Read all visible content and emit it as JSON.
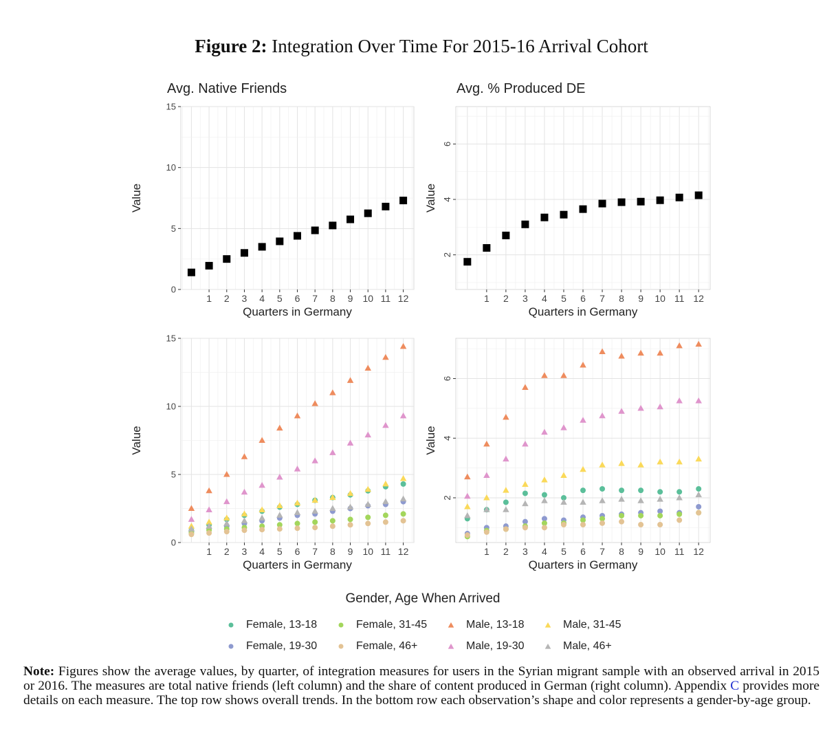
{
  "figure": {
    "label": "Figure 2:",
    "title": "Integration Over Time For 2015-16 Arrival Cohort"
  },
  "panel_titles": {
    "left": "Avg. Native Friends",
    "right": "Avg. % Produced DE"
  },
  "legend": {
    "title": "Gender, Age When Arrived",
    "items": [
      {
        "label": "Female, 13-18",
        "shape": "circle",
        "color": "#5bbf9a"
      },
      {
        "label": "Female, 19-30",
        "shape": "circle",
        "color": "#8e9acf"
      },
      {
        "label": "Female, 31-45",
        "shape": "circle",
        "color": "#a3d65c"
      },
      {
        "label": "Female, 46+",
        "shape": "circle",
        "color": "#e3c394"
      },
      {
        "label": "Male, 13-18",
        "shape": "triangle",
        "color": "#ee8c5e"
      },
      {
        "label": "Male, 19-30",
        "shape": "triangle",
        "color": "#df95cc"
      },
      {
        "label": "Male, 31-45",
        "shape": "triangle",
        "color": "#fad95a"
      },
      {
        "label": "Male, 46+",
        "shape": "triangle",
        "color": "#b5b5b5"
      }
    ]
  },
  "note": {
    "label": "Note:",
    "text_before": "Figures show the average values, by quarter, of integration measures for users in the Syrian migrant sample with an observed arrival in 2015 or 2016. The measures are total native friends (left column) and the share of content produced in German (right column). Appendix",
    "link": "C",
    "text_after": "provides more details on each measure. The top row shows overall trends. In the bottom row each observation’s shape and color represents a gender-by-age group."
  },
  "chart_data": [
    {
      "type": "scatter",
      "id": "tl",
      "title": "Avg. Native Friends",
      "xlabel": "Quarters in Germany",
      "ylabel": "Value",
      "xlim": [
        -0.6,
        12.6
      ],
      "ylim": [
        0,
        15
      ],
      "yticks": [
        0,
        5,
        10,
        15
      ],
      "xticks": [
        1,
        2,
        3,
        4,
        5,
        6,
        7,
        8,
        9,
        10,
        11,
        12
      ],
      "grid": true,
      "series": [
        {
          "color": "#000000",
          "shape": "square",
          "x": [
            0,
            1,
            2,
            3,
            4,
            5,
            6,
            7,
            8,
            9,
            10,
            11,
            12
          ],
          "y": [
            1.4,
            1.95,
            2.5,
            3.0,
            3.5,
            3.95,
            4.4,
            4.85,
            5.25,
            5.75,
            6.25,
            6.8,
            7.3
          ]
        }
      ]
    },
    {
      "type": "scatter",
      "id": "tr",
      "title": "Avg. % Produced DE",
      "xlabel": "Quarters in Germany",
      "ylabel": "Value",
      "xlim": [
        -0.6,
        12.6
      ],
      "ylim": [
        0.75,
        7.35
      ],
      "yticks": [
        2,
        4,
        6
      ],
      "xticks": [
        1,
        2,
        3,
        4,
        5,
        6,
        7,
        8,
        9,
        10,
        11,
        12
      ],
      "grid": true,
      "series": [
        {
          "color": "#000000",
          "shape": "square",
          "x": [
            0,
            1,
            2,
            3,
            4,
            5,
            6,
            7,
            8,
            9,
            10,
            11,
            12
          ],
          "y": [
            1.75,
            2.25,
            2.7,
            3.1,
            3.35,
            3.45,
            3.65,
            3.85,
            3.9,
            3.92,
            3.97,
            4.07,
            4.15
          ]
        }
      ]
    },
    {
      "type": "scatter",
      "id": "bl",
      "xlabel": "Quarters in Germany",
      "ylabel": "Value",
      "xlim": [
        -0.6,
        12.6
      ],
      "ylim": [
        0,
        15
      ],
      "yticks": [
        0,
        5,
        10,
        15
      ],
      "xticks": [
        1,
        2,
        3,
        4,
        5,
        6,
        7,
        8,
        9,
        10,
        11,
        12
      ],
      "grid": true,
      "series": [
        {
          "group": "Female, 13-18",
          "color": "#5bbf9a",
          "shape": "circle",
          "x": [
            0,
            1,
            2,
            3,
            4,
            5,
            6,
            7,
            8,
            9,
            10,
            11,
            12
          ],
          "y": [
            0.9,
            1.3,
            1.7,
            2.0,
            2.3,
            2.6,
            2.8,
            3.1,
            3.3,
            3.5,
            3.8,
            4.1,
            4.3
          ]
        },
        {
          "group": "Female, 19-30",
          "color": "#8e9acf",
          "shape": "circle",
          "x": [
            0,
            1,
            2,
            3,
            4,
            5,
            6,
            7,
            8,
            9,
            10,
            11,
            12
          ],
          "y": [
            0.8,
            1.0,
            1.2,
            1.4,
            1.6,
            1.8,
            2.0,
            2.1,
            2.3,
            2.5,
            2.7,
            2.8,
            3.0
          ]
        },
        {
          "group": "Female, 31-45",
          "color": "#a3d65c",
          "shape": "circle",
          "x": [
            0,
            1,
            2,
            3,
            4,
            5,
            6,
            7,
            8,
            9,
            10,
            11,
            12
          ],
          "y": [
            0.7,
            0.9,
            1.0,
            1.1,
            1.2,
            1.3,
            1.4,
            1.5,
            1.6,
            1.7,
            1.85,
            2.0,
            2.1
          ]
        },
        {
          "group": "Female, 46+",
          "color": "#e3c394",
          "shape": "circle",
          "x": [
            0,
            1,
            2,
            3,
            4,
            5,
            6,
            7,
            8,
            9,
            10,
            11,
            12
          ],
          "y": [
            0.6,
            0.7,
            0.8,
            0.9,
            0.95,
            1.0,
            1.05,
            1.1,
            1.2,
            1.3,
            1.4,
            1.5,
            1.6
          ]
        },
        {
          "group": "Male, 13-18",
          "color": "#ee8c5e",
          "shape": "triangle",
          "x": [
            0,
            1,
            2,
            3,
            4,
            5,
            6,
            7,
            8,
            9,
            10,
            11,
            12
          ],
          "y": [
            2.5,
            3.8,
            5.0,
            6.3,
            7.5,
            8.4,
            9.3,
            10.2,
            11.0,
            11.9,
            12.8,
            13.6,
            14.4
          ]
        },
        {
          "group": "Male, 19-30",
          "color": "#df95cc",
          "shape": "triangle",
          "x": [
            0,
            1,
            2,
            3,
            4,
            5,
            6,
            7,
            8,
            9,
            10,
            11,
            12
          ],
          "y": [
            1.7,
            2.4,
            3.0,
            3.7,
            4.2,
            4.8,
            5.4,
            6.0,
            6.6,
            7.3,
            7.9,
            8.6,
            9.3
          ]
        },
        {
          "group": "Male, 31-45",
          "color": "#fad95a",
          "shape": "triangle",
          "x": [
            0,
            1,
            2,
            3,
            4,
            5,
            6,
            7,
            8,
            9,
            10,
            11,
            12
          ],
          "y": [
            1.2,
            1.5,
            1.8,
            2.1,
            2.4,
            2.7,
            2.9,
            3.1,
            3.3,
            3.6,
            3.9,
            4.3,
            4.7
          ]
        },
        {
          "group": "Male, 46+",
          "color": "#b5b5b5",
          "shape": "triangle",
          "x": [
            0,
            1,
            2,
            3,
            4,
            5,
            6,
            7,
            8,
            9,
            10,
            11,
            12
          ],
          "y": [
            1.0,
            1.2,
            1.4,
            1.6,
            1.8,
            2.0,
            2.2,
            2.3,
            2.5,
            2.6,
            2.8,
            3.0,
            3.2
          ]
        }
      ]
    },
    {
      "type": "scatter",
      "id": "br",
      "xlabel": "Quarters in Germany",
      "ylabel": "Value",
      "xlim": [
        -0.6,
        12.6
      ],
      "ylim": [
        0.5,
        7.35
      ],
      "yticks": [
        2,
        4,
        6
      ],
      "xticks": [
        1,
        2,
        3,
        4,
        5,
        6,
        7,
        8,
        9,
        10,
        11,
        12
      ],
      "grid": true,
      "series": [
        {
          "group": "Female, 13-18",
          "color": "#5bbf9a",
          "shape": "circle",
          "x": [
            0,
            1,
            2,
            3,
            4,
            5,
            6,
            7,
            8,
            9,
            10,
            11,
            12
          ],
          "y": [
            1.3,
            1.6,
            1.85,
            2.15,
            2.1,
            2.0,
            2.25,
            2.3,
            2.25,
            2.25,
            2.2,
            2.2,
            2.3
          ]
        },
        {
          "group": "Female, 19-30",
          "color": "#8e9acf",
          "shape": "circle",
          "x": [
            0,
            1,
            2,
            3,
            4,
            5,
            6,
            7,
            8,
            9,
            10,
            11,
            12
          ],
          "y": [
            0.8,
            1.0,
            1.05,
            1.2,
            1.3,
            1.25,
            1.35,
            1.4,
            1.45,
            1.5,
            1.55,
            1.5,
            1.7
          ]
        },
        {
          "group": "Female, 31-45",
          "color": "#a3d65c",
          "shape": "circle",
          "x": [
            0,
            1,
            2,
            3,
            4,
            5,
            6,
            7,
            8,
            9,
            10,
            11,
            12
          ],
          "y": [
            0.7,
            0.9,
            0.95,
            1.05,
            1.15,
            1.15,
            1.25,
            1.3,
            1.4,
            1.4,
            1.4,
            1.45,
            1.5
          ]
        },
        {
          "group": "Female, 46+",
          "color": "#e3c394",
          "shape": "circle",
          "x": [
            0,
            1,
            2,
            3,
            4,
            5,
            6,
            7,
            8,
            9,
            10,
            11,
            12
          ],
          "y": [
            0.75,
            0.85,
            0.95,
            1.0,
            1.0,
            1.1,
            1.1,
            1.15,
            1.2,
            1.1,
            1.1,
            1.25,
            1.5
          ]
        },
        {
          "group": "Male, 13-18",
          "color": "#ee8c5e",
          "shape": "triangle",
          "x": [
            0,
            1,
            2,
            3,
            4,
            5,
            6,
            7,
            8,
            9,
            10,
            11,
            12
          ],
          "y": [
            2.7,
            3.8,
            4.7,
            5.7,
            6.1,
            6.1,
            6.45,
            6.9,
            6.75,
            6.85,
            6.85,
            7.1,
            7.15
          ]
        },
        {
          "group": "Male, 19-30",
          "color": "#df95cc",
          "shape": "triangle",
          "x": [
            0,
            1,
            2,
            3,
            4,
            5,
            6,
            7,
            8,
            9,
            10,
            11,
            12
          ],
          "y": [
            2.05,
            2.75,
            3.3,
            3.8,
            4.2,
            4.35,
            4.6,
            4.75,
            4.9,
            5.0,
            5.05,
            5.25,
            5.25
          ]
        },
        {
          "group": "Male, 31-45",
          "color": "#fad95a",
          "shape": "triangle",
          "x": [
            0,
            1,
            2,
            3,
            4,
            5,
            6,
            7,
            8,
            9,
            10,
            11,
            12
          ],
          "y": [
            1.7,
            2.0,
            2.25,
            2.45,
            2.6,
            2.75,
            2.95,
            3.1,
            3.15,
            3.1,
            3.2,
            3.2,
            3.3
          ]
        },
        {
          "group": "Male, 46+",
          "color": "#b5b5b5",
          "shape": "triangle",
          "x": [
            0,
            1,
            2,
            3,
            4,
            5,
            6,
            7,
            8,
            9,
            10,
            11,
            12
          ],
          "y": [
            1.4,
            1.6,
            1.6,
            1.8,
            1.9,
            1.85,
            1.85,
            1.9,
            1.95,
            1.9,
            1.95,
            2.0,
            2.1
          ]
        }
      ]
    }
  ]
}
